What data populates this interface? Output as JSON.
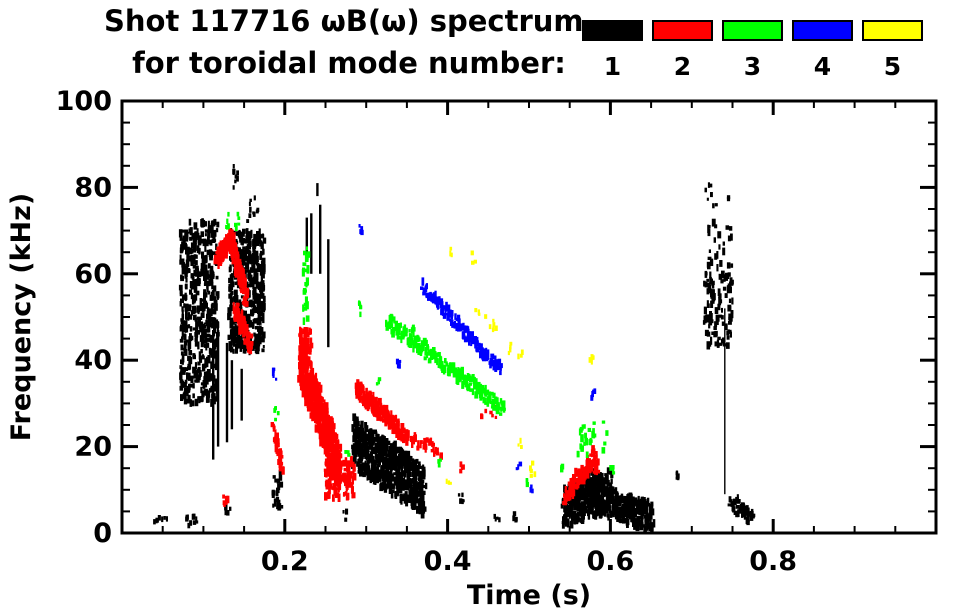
{
  "figure": {
    "title_line1": "Shot 117716 ωB(ω) spectrum",
    "title_line2": "for toroidal mode number:"
  },
  "legend": {
    "items": [
      {
        "label": "1",
        "color": "#000000"
      },
      {
        "label": "2",
        "color": "#ff0000"
      },
      {
        "label": "3",
        "color": "#00ff00"
      },
      {
        "label": "4",
        "color": "#0000ff"
      },
      {
        "label": "5",
        "color": "#ffff00"
      }
    ]
  },
  "chart_data": {
    "type": "scatter",
    "title": "Shot 117716 ωB(ω) spectrum for toroidal mode number: 1 2 3 4 5",
    "xlabel": "Time (s)",
    "ylabel": "Frequency (kHz)",
    "xlim": [
      0,
      1
    ],
    "ylim": [
      0,
      100
    ],
    "xticks": [
      0.2,
      0.4,
      0.6,
      0.8
    ],
    "xtick_labels": [
      "0.2",
      "0.4",
      "0.6",
      "0.8"
    ],
    "yticks": [
      0,
      20,
      40,
      60,
      80,
      100
    ],
    "ytick_labels": [
      "0",
      "20",
      "40",
      "60",
      "80",
      "100"
    ],
    "x_minor_step": 0.05,
    "y_minor_step": 5,
    "grid": false,
    "legend_position": "top-right",
    "axis_color": "#000000",
    "series": [
      {
        "name": "mode 1",
        "color": "#000000",
        "features": [
          {
            "kind": "blob",
            "t": [
              0.072,
              0.118
            ],
            "f": [
              30,
              72
            ],
            "n": 520
          },
          {
            "kind": "vline",
            "t": 0.112,
            "f": [
              17,
              47
            ]
          },
          {
            "kind": "vline",
            "t": 0.118,
            "f": [
              20,
              47
            ]
          },
          {
            "kind": "vline",
            "t": 0.129,
            "f": [
              21,
              44
            ]
          },
          {
            "kind": "vline",
            "t": 0.135,
            "f": [
              24,
              40
            ]
          },
          {
            "kind": "vline",
            "t": 0.147,
            "f": [
              26,
              38
            ]
          },
          {
            "kind": "blob",
            "t": [
              0.131,
              0.175
            ],
            "f": [
              42,
              70
            ],
            "n": 430
          },
          {
            "kind": "blob",
            "t": [
              0.136,
              0.142
            ],
            "f": [
              79,
              85
            ],
            "n": 8
          },
          {
            "kind": "blob",
            "t": [
              0.154,
              0.168
            ],
            "f": [
              72,
              78
            ],
            "n": 10
          },
          {
            "kind": "blob",
            "t": [
              0.185,
              0.197
            ],
            "f": [
              5,
              15
            ],
            "n": 18
          },
          {
            "kind": "vline",
            "t": 0.227,
            "f": [
              64,
              73
            ]
          },
          {
            "kind": "vline",
            "t": 0.2325,
            "f": [
              60,
              74
            ]
          },
          {
            "kind": "vline",
            "t": 0.24,
            "f": [
              78,
              81
            ]
          },
          {
            "kind": "vline",
            "t": 0.2435,
            "f": [
              60,
              76
            ]
          },
          {
            "kind": "vline",
            "t": 0.2535,
            "f": [
              43,
              68
            ]
          },
          {
            "kind": "band",
            "t": [
              0.284,
              0.372
            ],
            "f": [
              21,
              9.5
            ],
            "w": 12,
            "n": 650
          },
          {
            "kind": "blob",
            "t": [
              0.038,
              0.056
            ],
            "f": [
              1.5,
              4
            ],
            "n": 8
          },
          {
            "kind": "blob",
            "t": [
              0.079,
              0.094
            ],
            "f": [
              1.5,
              4.5
            ],
            "n": 10
          },
          {
            "kind": "blob",
            "t": [
              0.127,
              0.133
            ],
            "f": [
              4.5,
              6.5
            ],
            "n": 5
          },
          {
            "kind": "blob",
            "t": [
              0.272,
              0.279
            ],
            "f": [
              3,
              5
            ],
            "n": 4
          },
          {
            "kind": "blob",
            "t": [
              0.413,
              0.42
            ],
            "f": [
              7,
              9
            ],
            "n": 5
          },
          {
            "kind": "blob",
            "t": [
              0.457,
              0.464
            ],
            "f": [
              3,
              5
            ],
            "n": 4
          },
          {
            "kind": "blob",
            "t": [
              0.479,
              0.486
            ],
            "f": [
              3,
              4.5
            ],
            "n": 4
          },
          {
            "kind": "band",
            "t": [
              0.542,
              0.59
            ],
            "f": [
              6,
              8.5
            ],
            "w": 9,
            "n": 280
          },
          {
            "kind": "band",
            "t": [
              0.59,
              0.652
            ],
            "f": [
              7.5,
              3.5
            ],
            "w": 7,
            "n": 260
          },
          {
            "kind": "blob",
            "t": [
              0.565,
              0.602
            ],
            "f": [
              9,
              14.5
            ],
            "n": 70
          },
          {
            "kind": "blob",
            "t": [
              0.681,
              0.686
            ],
            "f": [
              12.5,
              15
            ],
            "n": 6
          },
          {
            "kind": "blob",
            "t": [
              0.715,
              0.75
            ],
            "f": [
              43,
              60
            ],
            "n": 110
          },
          {
            "kind": "vline",
            "t": 0.7405,
            "f": [
              9,
              52
            ],
            "lw": 1.4
          },
          {
            "kind": "blob",
            "t": [
              0.72,
              0.75
            ],
            "f": [
              61,
              72
            ],
            "n": 26
          },
          {
            "kind": "blob",
            "t": [
              0.716,
              0.748
            ],
            "f": [
              75,
              81
            ],
            "n": 9
          },
          {
            "kind": "band",
            "t": [
              0.747,
              0.776
            ],
            "f": [
              7.5,
              3
            ],
            "w": 3.5,
            "n": 45
          }
        ]
      },
      {
        "name": "mode 2",
        "color": "#ff0000",
        "features": [
          {
            "kind": "band",
            "t": [
              0.116,
              0.134
            ],
            "f": [
              63,
              68.5
            ],
            "w": 4.5,
            "n": 90
          },
          {
            "kind": "band",
            "t": [
              0.134,
              0.153
            ],
            "f": [
              68,
              54
            ],
            "w": 5,
            "n": 130
          },
          {
            "kind": "band",
            "t": [
              0.139,
              0.158
            ],
            "f": [
              52,
              44
            ],
            "w": 4.5,
            "n": 90
          },
          {
            "kind": "blob",
            "t": [
              0.123,
              0.131
            ],
            "f": [
              6.5,
              8.5
            ],
            "n": 7
          },
          {
            "kind": "band",
            "t": [
              0.186,
              0.197
            ],
            "f": [
              24,
              15
            ],
            "w": 3,
            "n": 35
          },
          {
            "kind": "blob",
            "t": [
              0.218,
              0.233
            ],
            "f": [
              38,
              47
            ],
            "n": 70
          },
          {
            "kind": "band",
            "t": [
              0.219,
              0.268
            ],
            "f": [
              40,
              15
            ],
            "w": 11,
            "n": 600
          },
          {
            "kind": "blob",
            "t": [
              0.25,
              0.286
            ],
            "f": [
              8,
              17
            ],
            "n": 130
          },
          {
            "kind": "band",
            "t": [
              0.287,
              0.345
            ],
            "f": [
              34,
              23
            ],
            "w": 4,
            "n": 200
          },
          {
            "kind": "band",
            "t": [
              0.345,
              0.392
            ],
            "f": [
              22.5,
              19
            ],
            "w": 3,
            "n": 40
          },
          {
            "kind": "blob",
            "t": [
              0.414,
              0.42
            ],
            "f": [
              14,
              16
            ],
            "n": 4
          },
          {
            "kind": "blob",
            "t": [
              0.44,
              0.467
            ],
            "f": [
              26.5,
              30
            ],
            "n": 8
          },
          {
            "kind": "band",
            "t": [
              0.543,
              0.58
            ],
            "f": [
              8,
              17.5
            ],
            "w": 4,
            "n": 90
          },
          {
            "kind": "blob",
            "t": [
              0.578,
              0.586
            ],
            "f": [
              14,
              20
            ],
            "n": 18
          }
        ]
      },
      {
        "name": "mode 3",
        "color": "#00ff00",
        "features": [
          {
            "kind": "blob",
            "t": [
              0.126,
              0.131
            ],
            "f": [
              70.5,
              74
            ],
            "n": 5
          },
          {
            "kind": "blob",
            "t": [
              0.139,
              0.144
            ],
            "f": [
              70.5,
              74
            ],
            "n": 5
          },
          {
            "kind": "blob",
            "t": [
              0.2225,
              0.2295
            ],
            "f": [
              49,
              66
            ],
            "n": 24
          },
          {
            "kind": "blob",
            "t": [
              0.291,
              0.295
            ],
            "f": [
              50,
              53.5
            ],
            "n": 6
          },
          {
            "kind": "blob",
            "t": [
              0.275,
              0.28
            ],
            "f": [
              18,
              19.5
            ],
            "n": 3
          },
          {
            "kind": "blob",
            "t": [
              0.313,
              0.318
            ],
            "f": [
              34.5,
              36.5
            ],
            "n": 4
          },
          {
            "kind": "band",
            "t": [
              0.326,
              0.47
            ],
            "f": [
              49,
              28.5
            ],
            "w": 3.5,
            "n": 230
          },
          {
            "kind": "blob",
            "t": [
              0.355,
              0.36
            ],
            "f": [
              46,
              48
            ],
            "n": 4
          },
          {
            "kind": "blob",
            "t": [
              0.388,
              0.393
            ],
            "f": [
              15.5,
              17
            ],
            "n": 3
          },
          {
            "kind": "blob",
            "t": [
              0.497,
              0.503
            ],
            "f": [
              11,
              12.5
            ],
            "n": 3
          },
          {
            "kind": "blob",
            "t": [
              0.187,
              0.192
            ],
            "f": [
              26,
              29.5
            ],
            "n": 5
          },
          {
            "kind": "blob",
            "t": [
              0.558,
              0.597
            ],
            "f": [
              18,
              26
            ],
            "n": 28
          },
          {
            "kind": "blob",
            "t": [
              0.54,
              0.545
            ],
            "f": [
              14.5,
              16.5
            ],
            "n": 3
          },
          {
            "kind": "blob",
            "t": [
              0.598,
              0.607
            ],
            "f": [
              13.5,
              16
            ],
            "n": 5
          }
        ]
      },
      {
        "name": "mode 4",
        "color": "#0000ff",
        "features": [
          {
            "kind": "blob",
            "t": [
              0.185,
              0.19
            ],
            "f": [
              35,
              38.5
            ],
            "n": 5
          },
          {
            "kind": "blob",
            "t": [
              0.291,
              0.295
            ],
            "f": [
              69.5,
              71.5
            ],
            "n": 4
          },
          {
            "kind": "band",
            "t": [
              0.369,
              0.466
            ],
            "f": [
              57,
              37.5
            ],
            "w": 3,
            "n": 140
          },
          {
            "kind": "blob",
            "t": [
              0.338,
              0.344
            ],
            "f": [
              38,
              40
            ],
            "n": 4
          },
          {
            "kind": "blob",
            "t": [
              0.485,
              0.49
            ],
            "f": [
              14.5,
              16
            ],
            "n": 3
          },
          {
            "kind": "blob",
            "t": [
              0.501,
              0.506
            ],
            "f": [
              9.5,
              11
            ],
            "n": 3
          },
          {
            "kind": "blob",
            "t": [
              0.576,
              0.581
            ],
            "f": [
              31,
              34
            ],
            "n": 5
          }
        ]
      },
      {
        "name": "mode 5",
        "color": "#ffff00",
        "features": [
          {
            "kind": "blob",
            "t": [
              0.403,
              0.408
            ],
            "f": [
              64,
              66
            ],
            "n": 3
          },
          {
            "kind": "blob",
            "t": [
              0.43,
              0.435
            ],
            "f": [
              62.5,
              65
            ],
            "n": 3
          },
          {
            "kind": "blob",
            "t": [
              0.434,
              0.44
            ],
            "f": [
              50,
              52.5
            ],
            "n": 3
          },
          {
            "kind": "blob",
            "t": [
              0.445,
              0.468
            ],
            "f": [
              46.5,
              50.5
            ],
            "n": 7
          },
          {
            "kind": "blob",
            "t": [
              0.472,
              0.48
            ],
            "f": [
              41,
              44
            ],
            "n": 4
          },
          {
            "kind": "blob",
            "t": [
              0.486,
              0.492
            ],
            "f": [
              39.5,
              42
            ],
            "n": 3
          },
          {
            "kind": "blob",
            "t": [
              0.398,
              0.404
            ],
            "f": [
              10.8,
              12.5
            ],
            "n": 3
          },
          {
            "kind": "blob",
            "t": [
              0.487,
              0.493
            ],
            "f": [
              19.8,
              21.5
            ],
            "n": 3
          },
          {
            "kind": "blob",
            "t": [
              0.494,
              0.508
            ],
            "f": [
              10.5,
              16.5
            ],
            "n": 5
          },
          {
            "kind": "blob",
            "t": [
              0.575,
              0.58
            ],
            "f": [
              39,
              42
            ],
            "n": 5
          }
        ]
      }
    ]
  }
}
